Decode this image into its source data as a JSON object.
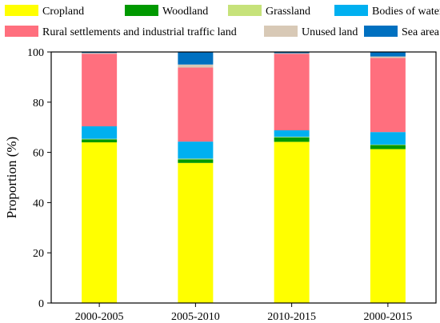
{
  "chart_data": {
    "type": "bar",
    "stacked": true,
    "categories": [
      "2000-2005",
      "2005-2010",
      "2010-2015",
      "2000-2015"
    ],
    "ylabel": "Proportion (%)",
    "xlabel": "",
    "ylim": [
      0,
      100
    ],
    "yticks": [
      0,
      20,
      40,
      60,
      80,
      100
    ],
    "legend_position": "top",
    "series": [
      {
        "name": "Cropland",
        "color": "#ffff00",
        "values": [
          64.0,
          55.8,
          64.2,
          61.3
        ]
      },
      {
        "name": "Woodland",
        "color": "#009900",
        "values": [
          1.2,
          1.4,
          1.8,
          1.6
        ]
      },
      {
        "name": "Grassland",
        "color": "#c6e27a",
        "values": [
          0.2,
          0.3,
          0.2,
          0.2
        ]
      },
      {
        "name": "Bodies of water",
        "color": "#00b0f0",
        "values": [
          5.0,
          6.8,
          2.6,
          5.0
        ]
      },
      {
        "name": "Rural settlements and industrial traffic land",
        "color": "#ff6f7e",
        "values": [
          28.9,
          29.5,
          30.5,
          29.5
        ]
      },
      {
        "name": "Unused land",
        "color": "#d8c9b6",
        "values": [
          0.3,
          1.2,
          0.2,
          0.6
        ]
      },
      {
        "name": "Sea area",
        "color": "#0070c0",
        "values": [
          0.4,
          5.0,
          0.5,
          1.8
        ]
      }
    ]
  }
}
